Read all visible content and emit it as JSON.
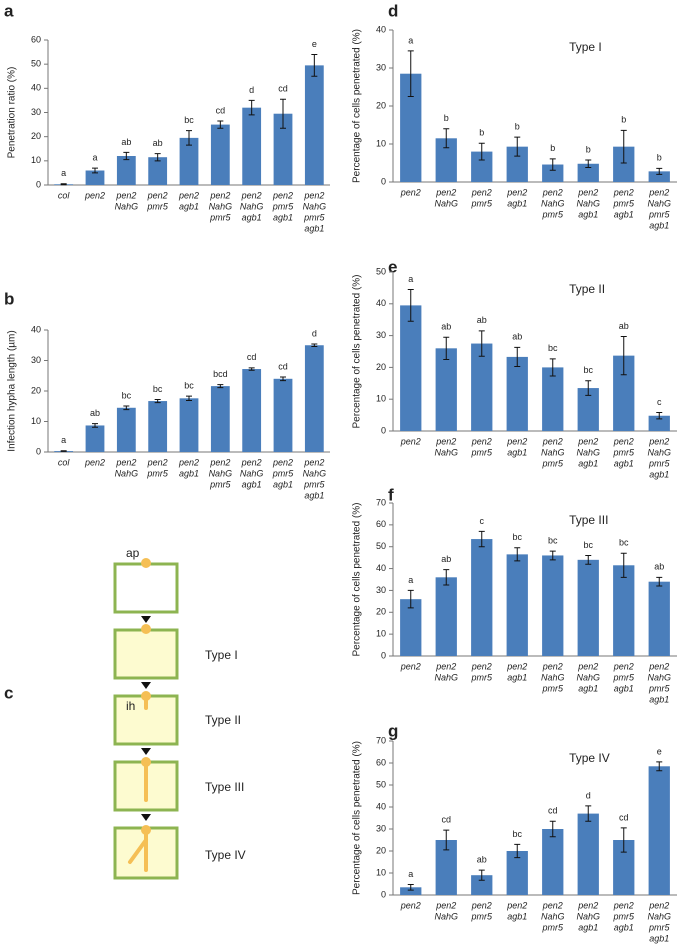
{
  "chart_data": [
    {
      "type": "bar",
      "panel": "a",
      "ylabel": "Penetration ratio (%)",
      "color": "#4a7ebb",
      "categories": [
        [
          "col"
        ],
        [
          "pen2"
        ],
        [
          "pen2",
          "NahG"
        ],
        [
          "pen2",
          "pmr5"
        ],
        [
          "pen2",
          "agb1"
        ],
        [
          "pen2",
          "NahG",
          "pmr5"
        ],
        [
          "pen2",
          "NahG",
          "agb1"
        ],
        [
          "pen2",
          "pmr5",
          "agb1"
        ],
        [
          "pen2",
          "NahG",
          "pmr5",
          "agb1"
        ]
      ],
      "values": [
        0.3,
        6,
        12,
        11.5,
        19.5,
        25,
        32,
        29.5,
        49.5
      ],
      "errors": [
        0.2,
        1,
        1.5,
        1.5,
        3,
        1.5,
        3,
        6,
        4.5
      ],
      "annotations": [
        "a",
        "a",
        "ab",
        "ab",
        "bc",
        "cd",
        "d",
        "cd",
        "e"
      ],
      "ylim": [
        0,
        60
      ],
      "yticks": [
        0,
        10,
        20,
        30,
        40,
        50,
        60
      ]
    },
    {
      "type": "bar",
      "panel": "b",
      "ylabel": "Infection hypha length (µm)",
      "color": "#4a7ebb",
      "categories": [
        [
          "col"
        ],
        [
          "pen2"
        ],
        [
          "pen2",
          "NahG"
        ],
        [
          "pen2",
          "pmr5"
        ],
        [
          "pen2",
          "agb1"
        ],
        [
          "pen2",
          "NahG",
          "pmr5"
        ],
        [
          "pen2",
          "NahG",
          "agb1"
        ],
        [
          "pen2",
          "pmr5",
          "agb1"
        ],
        [
          "pen2",
          "NahG",
          "pmr5",
          "agb1"
        ]
      ],
      "values": [
        0.3,
        8.7,
        14.5,
        16.7,
        17.6,
        21.6,
        27.2,
        24,
        35
      ],
      "errors": [
        0.1,
        0.6,
        0.6,
        0.5,
        0.7,
        0.5,
        0.4,
        0.6,
        0.4
      ],
      "annotations": [
        "a",
        "ab",
        "bc",
        "bc",
        "bc",
        "bcd",
        "cd",
        "cd",
        "d"
      ],
      "ylim": [
        0,
        40
      ],
      "yticks": [
        0,
        10,
        20,
        30,
        40
      ]
    },
    {
      "type": "bar",
      "panel": "d",
      "title": "Type I",
      "ylabel": "Percentage of cells penetrated (%)",
      "color": "#4a7ebb",
      "categories": [
        [
          "pen2"
        ],
        [
          "pen2",
          "NahG"
        ],
        [
          "pen2",
          "pmr5"
        ],
        [
          "pen2",
          "agb1"
        ],
        [
          "pen2",
          "NahG",
          "pmr5"
        ],
        [
          "pen2",
          "NahG",
          "agb1"
        ],
        [
          "pen2",
          "pmr5",
          "agb1"
        ],
        [
          "pen2",
          "NahG",
          "pmr5",
          "agb1"
        ]
      ],
      "values": [
        28.5,
        11.5,
        8,
        9.3,
        4.6,
        4.8,
        9.3,
        2.8
      ],
      "errors": [
        6,
        2.5,
        2.2,
        2.5,
        1.5,
        1,
        4.3,
        0.8
      ],
      "annotations": [
        "a",
        "b",
        "b",
        "b",
        "b",
        "b",
        "b",
        "b"
      ],
      "ylim": [
        0,
        40
      ],
      "yticks": [
        0,
        10,
        20,
        30,
        40
      ]
    },
    {
      "type": "bar",
      "panel": "e",
      "title": "Type II",
      "ylabel": "Percentage of cells penetrated (%)",
      "color": "#4a7ebb",
      "categories": [
        [
          "pen2"
        ],
        [
          "pen2",
          "NahG"
        ],
        [
          "pen2",
          "pmr5"
        ],
        [
          "pen2",
          "agb1"
        ],
        [
          "pen2",
          "NahG",
          "pmr5"
        ],
        [
          "pen2",
          "NahG",
          "agb1"
        ],
        [
          "pen2",
          "pmr5",
          "agb1"
        ],
        [
          "pen2",
          "NahG",
          "pmr5",
          "agb1"
        ]
      ],
      "values": [
        39.5,
        26,
        27.5,
        23.3,
        20,
        13.5,
        23.7,
        4.8
      ],
      "errors": [
        5,
        3.5,
        4,
        3,
        2.7,
        2.3,
        6,
        1
      ],
      "annotations": [
        "a",
        "ab",
        "ab",
        "ab",
        "bc",
        "bc",
        "ab",
        "c"
      ],
      "ylim": [
        0,
        50
      ],
      "yticks": [
        0,
        10,
        20,
        30,
        40,
        50
      ]
    },
    {
      "type": "bar",
      "panel": "f",
      "title": "Type III",
      "ylabel": "Percentage of cells penetrated (%)",
      "color": "#4a7ebb",
      "categories": [
        [
          "pen2"
        ],
        [
          "pen2",
          "NahG"
        ],
        [
          "pen2",
          "pmr5"
        ],
        [
          "pen2",
          "agb1"
        ],
        [
          "pen2",
          "NahG",
          "pmr5"
        ],
        [
          "pen2",
          "NahG",
          "agb1"
        ],
        [
          "pen2",
          "pmr5",
          "agb1"
        ],
        [
          "pen2",
          "NahG",
          "pmr5",
          "agb1"
        ]
      ],
      "values": [
        26,
        36,
        53.5,
        46.5,
        46,
        44,
        41.5,
        34
      ],
      "errors": [
        4,
        3.5,
        3.5,
        3,
        2,
        2,
        5.5,
        2
      ],
      "annotations": [
        "a",
        "ab",
        "c",
        "bc",
        "bc",
        "bc",
        "bc",
        "ab"
      ],
      "ylim": [
        0,
        70
      ],
      "yticks": [
        0,
        10,
        20,
        30,
        40,
        50,
        60,
        70
      ]
    },
    {
      "type": "bar",
      "panel": "g",
      "title": "Type IV",
      "ylabel": "Percentage of cells penetrated (%)",
      "color": "#4a7ebb",
      "categories": [
        [
          "pen2"
        ],
        [
          "pen2",
          "NahG"
        ],
        [
          "pen2",
          "pmr5"
        ],
        [
          "pen2",
          "agb1"
        ],
        [
          "pen2",
          "NahG",
          "pmr5"
        ],
        [
          "pen2",
          "NahG",
          "agb1"
        ],
        [
          "pen2",
          "pmr5",
          "agb1"
        ],
        [
          "pen2",
          "NahG",
          "pmr5",
          "agb1"
        ]
      ],
      "values": [
        3.5,
        25,
        9,
        20,
        30,
        37,
        25,
        58.5
      ],
      "errors": [
        1.3,
        4.5,
        2.3,
        3,
        3.5,
        3.5,
        5.5,
        2
      ],
      "annotations": [
        "a",
        "cd",
        "ab",
        "bc",
        "cd",
        "d",
        "cd",
        "e"
      ],
      "ylim": [
        0,
        70
      ],
      "yticks": [
        0,
        10,
        20,
        30,
        40,
        50,
        60,
        70
      ]
    }
  ],
  "diagram": {
    "panel": "c",
    "ap": "ap",
    "ih": "ih",
    "types": [
      "Type I",
      "Type II",
      "Type III",
      "Type IV"
    ]
  }
}
